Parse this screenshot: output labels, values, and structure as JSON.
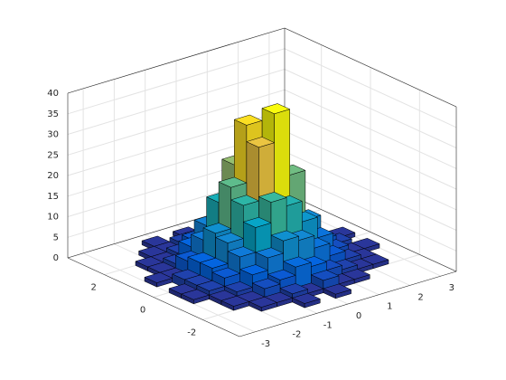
{
  "chart_data": {
    "type": "histogram2",
    "x_edges": [
      -3.5,
      -3,
      -2.5,
      -2,
      -1.5,
      -1,
      -0.5,
      0,
      0.5,
      1,
      1.5,
      2,
      2.5,
      3,
      3.5
    ],
    "y_edges": [
      -3.5,
      -3,
      -2.5,
      -2,
      -1.5,
      -1,
      -0.5,
      0,
      0.5,
      1,
      1.5,
      2,
      2.5,
      3,
      3.5
    ],
    "counts": [
      [
        0,
        0,
        0,
        0,
        0,
        0,
        0,
        0,
        0,
        0,
        0,
        0,
        0,
        0
      ],
      [
        0,
        0,
        0,
        0,
        0,
        1,
        0,
        1,
        0,
        0,
        0,
        0,
        0,
        0
      ],
      [
        0,
        0,
        0,
        1,
        1,
        2,
        1,
        3,
        1,
        1,
        0,
        0,
        0,
        0
      ],
      [
        0,
        0,
        1,
        1,
        3,
        4,
        6,
        5,
        3,
        2,
        1,
        1,
        0,
        0
      ],
      [
        0,
        0,
        1,
        2,
        5,
        8,
        11,
        10,
        7,
        4,
        2,
        1,
        0,
        0
      ],
      [
        0,
        1,
        2,
        4,
        8,
        14,
        19,
        17,
        12,
        7,
        3,
        1,
        1,
        0
      ],
      [
        0,
        1,
        2,
        5,
        10,
        18,
        31,
        38,
        22,
        10,
        4,
        2,
        0,
        0
      ],
      [
        0,
        0,
        2,
        5,
        11,
        21,
        35,
        29,
        19,
        9,
        4,
        1,
        1,
        0
      ],
      [
        0,
        1,
        1,
        4,
        8,
        16,
        24,
        20,
        13,
        7,
        3,
        1,
        0,
        0
      ],
      [
        0,
        0,
        1,
        2,
        5,
        9,
        12,
        10,
        7,
        4,
        2,
        1,
        0,
        0
      ],
      [
        0,
        0,
        1,
        1,
        2,
        4,
        5,
        4,
        3,
        2,
        1,
        0,
        0,
        0
      ],
      [
        0,
        0,
        0,
        1,
        1,
        2,
        2,
        1,
        1,
        1,
        0,
        0,
        0,
        0
      ],
      [
        0,
        0,
        0,
        0,
        1,
        0,
        1,
        0,
        0,
        0,
        0,
        0,
        0,
        0
      ],
      [
        0,
        0,
        0,
        0,
        0,
        0,
        0,
        0,
        0,
        0,
        0,
        0,
        0,
        0
      ]
    ],
    "xlim": [
      -3.5,
      3.5
    ],
    "ylim": [
      -3.5,
      3.5
    ],
    "zlim": [
      0,
      40
    ],
    "xticks": [
      -3,
      -2,
      -1,
      0,
      1,
      2,
      3
    ],
    "yticks": [
      -2,
      0,
      2
    ],
    "zticks": [
      0,
      5,
      10,
      15,
      20,
      25,
      30,
      35,
      40
    ],
    "grid": true,
    "colormap": "parula"
  }
}
